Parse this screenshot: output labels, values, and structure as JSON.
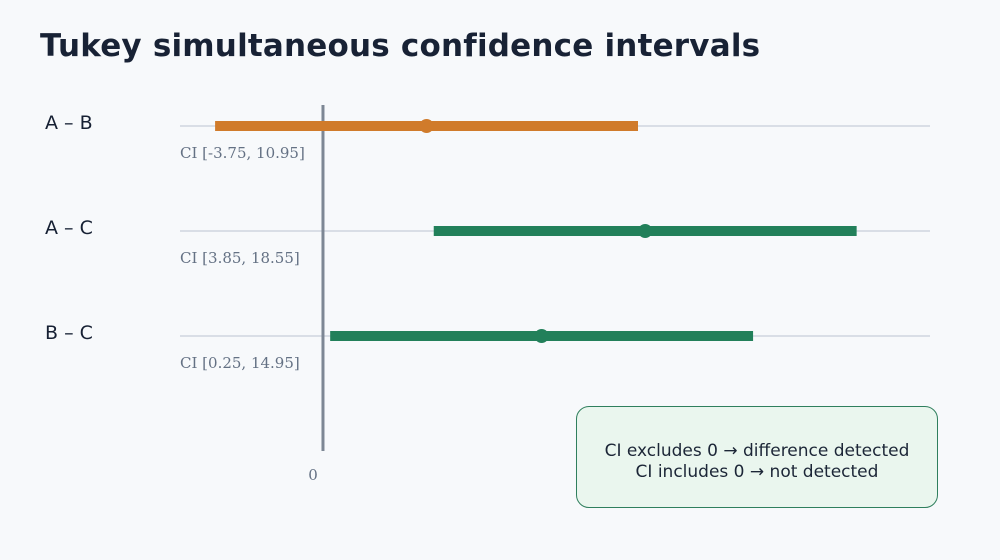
{
  "chart_data": {
    "type": "interval",
    "title": "Tukey simultaneous confidence intervals",
    "zero_tick_label": "0",
    "xlim": [
      -4.97,
      21.1
    ],
    "reference_line": 0,
    "rows": [
      {
        "label": "A – B",
        "estimate": 3.6,
        "lower": -3.75,
        "upper": 10.95,
        "ci_label": "CI [-3.75, 10.95]",
        "color": "#d07b2b"
      },
      {
        "label": "A – C",
        "estimate": 11.2,
        "lower": 3.85,
        "upper": 18.55,
        "ci_label": "CI [3.85, 18.55]",
        "color": "#22805a"
      },
      {
        "label": "B – C",
        "estimate": 7.6,
        "lower": 0.25,
        "upper": 14.95,
        "ci_label": "CI [0.25, 14.95]",
        "color": "#22805a"
      }
    ],
    "legend_lines": [
      "CI excludes 0 → difference detected",
      "CI includes 0 → not detected"
    ]
  },
  "colors": {
    "grid": "#d9dee6",
    "axis": "#7d8794",
    "text": "#162033",
    "muted_text": "#647184",
    "legend_border": "#2f7f5d",
    "legend_fill": "#eaf6ee"
  }
}
